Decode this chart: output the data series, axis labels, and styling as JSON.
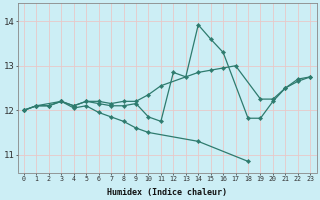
{
  "background_color": "#cceef5",
  "grid_color_major": "#e8c8c8",
  "grid_color_minor": "#ddeef5",
  "line_color": "#2e7b6e",
  "xlabel": "Humidex (Indice chaleur)",
  "xlim": [
    -0.5,
    23.5
  ],
  "ylim": [
    10.6,
    14.4
  ],
  "yticks": [
    11,
    12,
    13,
    14
  ],
  "xticks": [
    0,
    1,
    2,
    3,
    4,
    5,
    6,
    7,
    8,
    9,
    10,
    11,
    12,
    13,
    14,
    15,
    16,
    17,
    18,
    19,
    20,
    21,
    22,
    23
  ],
  "lines": [
    {
      "x": [
        0,
        1,
        3,
        4,
        5,
        6,
        7,
        8,
        9,
        10,
        11,
        14,
        15,
        16,
        17,
        19,
        20,
        21,
        22,
        23
      ],
      "y": [
        12.0,
        12.1,
        12.2,
        12.1,
        12.2,
        12.2,
        12.15,
        12.2,
        12.2,
        12.35,
        12.55,
        12.85,
        12.9,
        12.95,
        13.0,
        12.25,
        12.25,
        12.5,
        12.65,
        12.75
      ]
    },
    {
      "x": [
        0,
        1,
        2,
        3,
        4,
        5,
        6,
        7,
        8,
        9,
        10,
        11,
        12,
        13,
        14,
        15,
        16,
        18,
        19,
        20,
        21,
        22,
        23
      ],
      "y": [
        12.0,
        12.1,
        12.1,
        12.2,
        12.1,
        12.2,
        12.15,
        12.1,
        12.1,
        12.15,
        11.85,
        11.75,
        12.85,
        12.75,
        13.92,
        13.6,
        13.3,
        11.82,
        11.82,
        12.2,
        12.5,
        12.7,
        12.75
      ]
    },
    {
      "x": [
        0,
        1,
        2,
        3,
        4,
        5,
        6,
        7,
        8,
        9,
        10,
        14,
        18
      ],
      "y": [
        12.0,
        12.1,
        12.1,
        12.2,
        12.05,
        12.1,
        11.95,
        11.85,
        11.75,
        11.6,
        11.5,
        11.3,
        10.85
      ]
    }
  ]
}
